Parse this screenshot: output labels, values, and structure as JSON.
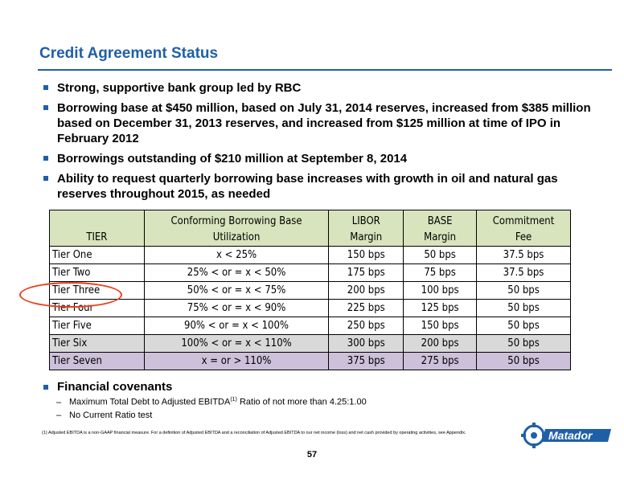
{
  "title": "Credit Agreement Status",
  "bullets": [
    "Strong, supportive bank group led by RBC",
    "Borrowing base at $450 million, based on July 31, 2014 reserves, increased from $385 million based on December 31, 2013 reserves, and increased from $125 million at time of IPO in February 2012",
    "Borrowings outstanding of $210 million at September 8, 2014",
    "Ability to request quarterly borrowing base increases with growth in oil and natural gas reserves throughout 2015, as needed"
  ],
  "table": {
    "headers": {
      "tier": "TIER",
      "util_1": "Conforming Borrowing Base",
      "util_2": "Utilization",
      "libor_1": "LIBOR",
      "libor_2": "Margin",
      "base_1": "BASE",
      "base_2": "Margin",
      "fee_1": "Commitment",
      "fee_2": "Fee"
    },
    "rows": [
      {
        "tier": "Tier One",
        "util": "x < 25%",
        "libor": "150 bps",
        "base": "50 bps",
        "fee": "37.5 bps"
      },
      {
        "tier": "Tier Two",
        "util": "25% < or = x < 50%",
        "libor": "175 bps",
        "base": "75 bps",
        "fee": "37.5 bps"
      },
      {
        "tier": "Tier Three",
        "util": "50% < or = x < 75%",
        "libor": "200 bps",
        "base": "100 bps",
        "fee": "50 bps"
      },
      {
        "tier": "Tier Four",
        "util": "75% < or = x < 90%",
        "libor": "225 bps",
        "base": "125 bps",
        "fee": "50 bps"
      },
      {
        "tier": "Tier Five",
        "util": "90% < or = x < 100%",
        "libor": "250 bps",
        "base": "150 bps",
        "fee": "50 bps"
      },
      {
        "tier": "Tier Six",
        "util": "100% < or = x < 110%",
        "libor": "300 bps",
        "base": "200 bps",
        "fee": "50 bps"
      },
      {
        "tier": "Tier Seven",
        "util": "x = or > 110%",
        "libor": "375 bps",
        "base": "275 bps",
        "fee": "50 bps"
      }
    ]
  },
  "covenants": {
    "heading": "Financial covenants",
    "item1_pre": "Maximum Total Debt to Adjusted EBITDA",
    "item1_sup": "(1)",
    "item1_post": " Ratio of not more than 4.25:1.00",
    "item2": "No Current Ratio test"
  },
  "footnote": "(1)     Adjusted EBITDA is a non-GAAP financial measure. For a definition of Adjusted EBITDA and a reconciliation of Adjusted EBITDA to our net income (loss) and net cash provided by operating activities, see Appendix.",
  "page_number": "57",
  "logo_text": "Matador",
  "colors": {
    "brand_blue": "#1f5fa8",
    "header_green": "#d7e4bd",
    "row_gray": "#d9d9d9",
    "row_lavender": "#ccc0da",
    "highlight_red": "#e8401c"
  }
}
